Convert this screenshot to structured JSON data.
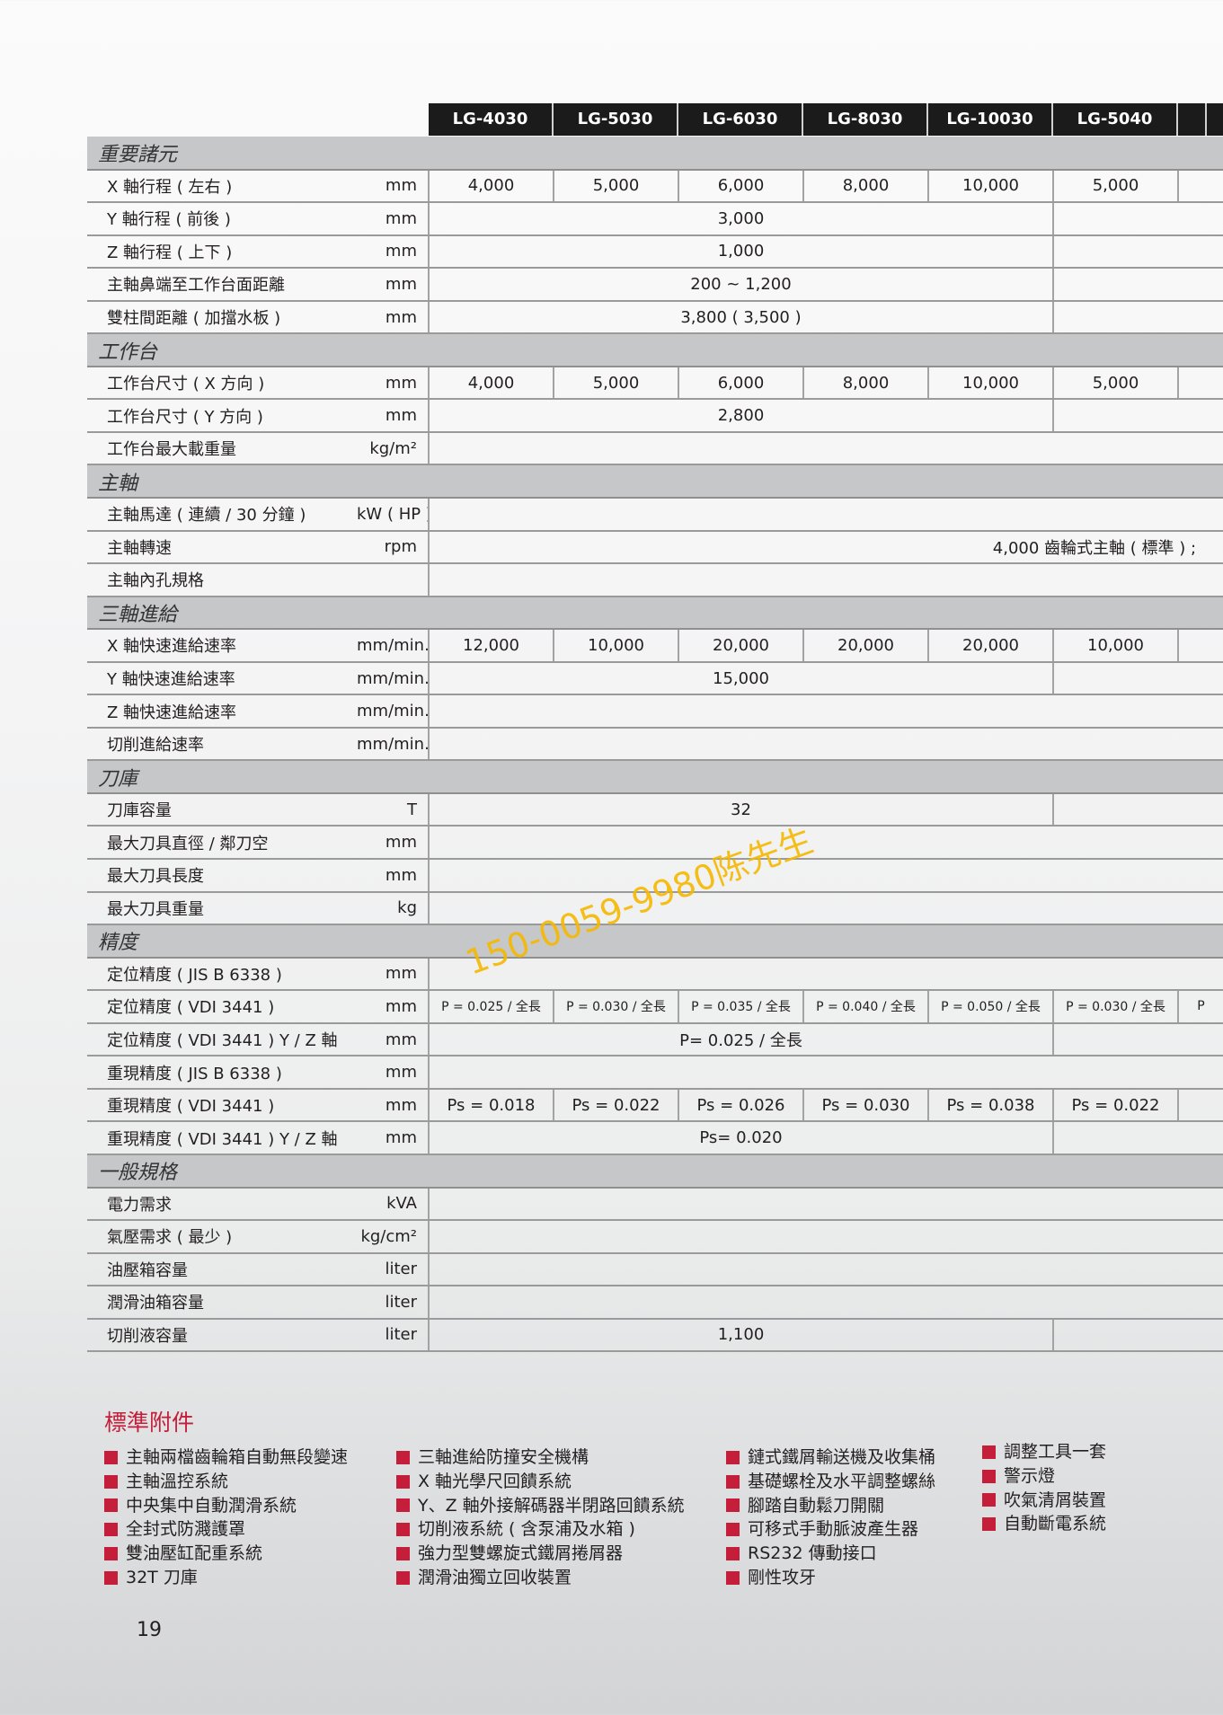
{
  "models": [
    "LG-4030",
    "LG-5030",
    "LG-6030",
    "LG-8030",
    "LG-10030",
    "LG-5040",
    ""
  ],
  "sections": [
    {
      "title": "重要諸元",
      "rows": [
        {
          "label": "X 軸行程 ( 左右 )",
          "unit": "mm",
          "layout": "each",
          "values": [
            "4,000",
            "5,000",
            "6,000",
            "8,000",
            "10,000",
            "5,000",
            ""
          ]
        },
        {
          "label": "Y 軸行程 ( 前後 )",
          "unit": "mm",
          "layout": "split",
          "values": [
            "3,000",
            ""
          ]
        },
        {
          "label": "Z 軸行程 ( 上下 )",
          "unit": "mm",
          "layout": "split",
          "values": [
            "1,000",
            ""
          ]
        },
        {
          "label": "主軸鼻端至工作台面距離",
          "unit": "mm",
          "layout": "split",
          "values": [
            "200 ~ 1,200",
            ""
          ]
        },
        {
          "label": "雙柱間距離 ( 加擋水板 )",
          "unit": "mm",
          "layout": "split",
          "values": [
            "3,800 ( 3,500 )",
            ""
          ]
        }
      ]
    },
    {
      "title": "工作台",
      "rows": [
        {
          "label": "工作台尺寸 ( X 方向 )",
          "unit": "mm",
          "layout": "each",
          "values": [
            "4,000",
            "5,000",
            "6,000",
            "8,000",
            "10,000",
            "5,000",
            ""
          ]
        },
        {
          "label": "工作台尺寸 ( Y 方向 )",
          "unit": "mm",
          "layout": "split",
          "values": [
            "2,800",
            ""
          ]
        },
        {
          "label": "工作台最大載重量",
          "unit": "kg/m²",
          "layout": "full",
          "values": [
            ""
          ]
        }
      ]
    },
    {
      "title": "主軸",
      "rows": [
        {
          "label": "主軸馬達 ( 連續 / 30 分鐘 )",
          "unit": "kW ( HP )",
          "layout": "full",
          "values": [
            ""
          ]
        },
        {
          "label": "主軸轉速",
          "unit": "rpm",
          "layout": "full",
          "align": "right",
          "values": [
            "4,000 齒輪式主軸 ( 標準 ) ;"
          ]
        },
        {
          "label": "主軸內孔規格",
          "unit": "",
          "layout": "full",
          "values": [
            ""
          ]
        }
      ]
    },
    {
      "title": "三軸進給",
      "rows": [
        {
          "label": "X 軸快速進給速率",
          "unit": "mm/min.",
          "layout": "each",
          "values": [
            "12,000",
            "10,000",
            "20,000",
            "20,000",
            "20,000",
            "10,000",
            ""
          ]
        },
        {
          "label": "Y 軸快速進給速率",
          "unit": "mm/min.",
          "layout": "split",
          "values": [
            "15,000",
            ""
          ]
        },
        {
          "label": "Z 軸快速進給速率",
          "unit": "mm/min.",
          "layout": "full",
          "values": [
            ""
          ]
        },
        {
          "label": "切削進給速率",
          "unit": "mm/min.",
          "layout": "full",
          "values": [
            ""
          ]
        }
      ]
    },
    {
      "title": "刀庫",
      "rows": [
        {
          "label": "刀庫容量",
          "unit": "T",
          "layout": "split",
          "values": [
            "32",
            ""
          ]
        },
        {
          "label": "最大刀具直徑 / 鄰刀空",
          "unit": "mm",
          "layout": "full",
          "values": [
            ""
          ]
        },
        {
          "label": "最大刀具長度",
          "unit": "mm",
          "layout": "full",
          "values": [
            ""
          ]
        },
        {
          "label": "最大刀具重量",
          "unit": "kg",
          "layout": "full",
          "values": [
            ""
          ]
        }
      ]
    },
    {
      "title": "精度",
      "rows": [
        {
          "label": "定位精度 ( JIS B 6338 )",
          "unit": "mm",
          "layout": "full",
          "values": [
            ""
          ]
        },
        {
          "label": "定位精度 ( VDI 3441 )",
          "unit": "mm",
          "layout": "each",
          "small": true,
          "values": [
            "P = 0.025 / 全長",
            "P = 0.030 / 全長",
            "P = 0.035 / 全長",
            "P = 0.040 / 全長",
            "P = 0.050 / 全長",
            "P = 0.030 / 全長",
            "P"
          ]
        },
        {
          "label": "定位精度 ( VDI 3441 ) Y / Z 軸",
          "unit": "mm",
          "layout": "split",
          "values": [
            "P= 0.025 / 全長",
            ""
          ]
        },
        {
          "label": "重現精度 ( JIS B 6338 )",
          "unit": "mm",
          "layout": "full",
          "values": [
            ""
          ]
        },
        {
          "label": "重現精度 ( VDI 3441 )",
          "unit": "mm",
          "layout": "each",
          "values": [
            "Ps = 0.018",
            "Ps = 0.022",
            "Ps = 0.026",
            "Ps = 0.030",
            "Ps = 0.038",
            "Ps = 0.022",
            ""
          ]
        },
        {
          "label": "重現精度 ( VDI 3441 ) Y / Z 軸",
          "unit": "mm",
          "layout": "split",
          "values": [
            "Ps= 0.020",
            ""
          ]
        }
      ]
    },
    {
      "title": "一般規格",
      "rows": [
        {
          "label": "電力需求",
          "unit": "kVA",
          "layout": "full",
          "values": [
            ""
          ]
        },
        {
          "label": "氣壓需求 ( 最少 )",
          "unit": "kg/cm²",
          "layout": "full",
          "values": [
            ""
          ]
        },
        {
          "label": "油壓箱容量",
          "unit": "liter",
          "layout": "full",
          "values": [
            ""
          ]
        },
        {
          "label": "潤滑油箱容量",
          "unit": "liter",
          "layout": "full",
          "values": [
            ""
          ]
        },
        {
          "label": "切削液容量",
          "unit": "liter",
          "layout": "split",
          "values": [
            "1,100",
            ""
          ]
        }
      ]
    }
  ],
  "accessories": {
    "title": "標準附件",
    "columns": [
      [
        "主軸兩檔齒輪箱自動無段變速",
        "主軸溫控系統",
        "中央集中自動潤滑系統",
        "全封式防濺護罩",
        "雙油壓缸配重系統",
        "32T 刀庫"
      ],
      [
        "三軸進給防撞安全機構",
        "X 軸光學尺回饋系統",
        "Y、Z 軸外接解碼器半閉路回饋系統",
        "切削液系統 ( 含泵浦及水箱 )",
        "強力型雙螺旋式鐵屑捲屑器",
        "潤滑油獨立回收裝置"
      ],
      [
        "鏈式鐵屑輸送機及收集桶",
        "基礎螺栓及水平調整螺絲",
        "腳踏自動鬆刀開關",
        "可移式手動脈波產生器",
        "RS232 傳動接口",
        "剛性攻牙"
      ],
      [
        "調整工具一套",
        "警示燈",
        "吹氣清屑裝置",
        "自動斷電系統"
      ]
    ]
  },
  "page_number": "19",
  "watermark": "150-0059-9980陈先生",
  "colors": {
    "accent": "#c41e3a",
    "header_bg": "#1c1b1b",
    "section_bg": "#c6c7c9",
    "watermark": "#f6b800"
  }
}
